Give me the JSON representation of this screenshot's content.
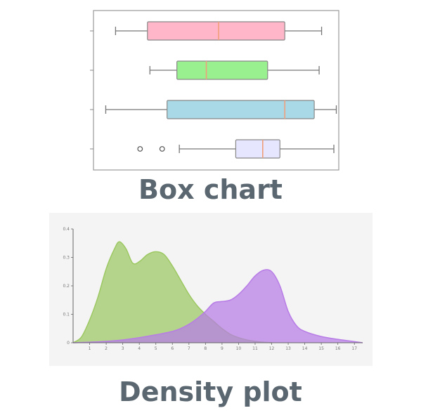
{
  "captions": {
    "box": "Box chart",
    "density": "Density plot"
  },
  "chart_data": [
    {
      "type": "box",
      "title": "",
      "xlim": [
        0,
        100
      ],
      "boxes": [
        {
          "min": 9,
          "q1": 22,
          "median": 51,
          "q3": 78,
          "max": 93,
          "outliers": [],
          "fill": "#ffb6c8",
          "stroke": "#888888",
          "median_color": "#f0a07a"
        },
        {
          "min": 23,
          "q1": 34,
          "median": 46,
          "q3": 71,
          "max": 92,
          "outliers": [],
          "fill": "#98f08e",
          "stroke": "#888888",
          "median_color": "#f0a07a"
        },
        {
          "min": 5,
          "q1": 30,
          "median": 78,
          "q3": 90,
          "max": 99,
          "outliers": [],
          "fill": "#a9d9e6",
          "stroke": "#888888",
          "median_color": "#f0a07a"
        },
        {
          "min": 35,
          "q1": 58,
          "median": 69,
          "q3": 76,
          "max": 98,
          "outliers": [
            19,
            28
          ],
          "fill": "#e6e6ff",
          "stroke": "#888888",
          "median_color": "#f0a07a"
        }
      ]
    },
    {
      "type": "area",
      "title": "",
      "xlim": [
        0,
        17.5
      ],
      "ylim": [
        0,
        0.4
      ],
      "x_ticks": [
        "1",
        "2",
        "3",
        "4",
        "5",
        "6",
        "7",
        "8",
        "9",
        "10",
        "11",
        "12",
        "13",
        "14",
        "15",
        "16",
        "17"
      ],
      "y_ticks": [
        "0",
        "0.1",
        "0.2",
        "0.3",
        "0.4"
      ],
      "series": [
        {
          "color": "#9cc862",
          "x": [
            0,
            0.5,
            1,
            1.5,
            2,
            2.5,
            2.8,
            3.2,
            3.6,
            4,
            4.5,
            5,
            5.5,
            6,
            6.5,
            7,
            7.5,
            8,
            8.5,
            9,
            9.5,
            10,
            10.5,
            11,
            11.5,
            12
          ],
          "y": [
            0,
            0.02,
            0.08,
            0.16,
            0.26,
            0.33,
            0.355,
            0.33,
            0.28,
            0.285,
            0.31,
            0.32,
            0.31,
            0.27,
            0.22,
            0.17,
            0.13,
            0.1,
            0.075,
            0.05,
            0.03,
            0.018,
            0.01,
            0.005,
            0.002,
            0
          ]
        },
        {
          "color": "#b77ce6",
          "x": [
            0,
            1,
            2,
            3,
            4,
            5,
            6,
            6.5,
            7,
            7.5,
            8,
            8.5,
            9,
            9.5,
            10,
            10.5,
            11,
            11.5,
            12,
            12.5,
            13,
            13.5,
            14,
            15,
            16,
            17,
            17.5
          ],
          "y": [
            0,
            0.002,
            0.005,
            0.01,
            0.018,
            0.028,
            0.04,
            0.05,
            0.065,
            0.085,
            0.11,
            0.14,
            0.145,
            0.15,
            0.17,
            0.2,
            0.235,
            0.255,
            0.25,
            0.2,
            0.11,
            0.06,
            0.04,
            0.022,
            0.012,
            0.004,
            0
          ]
        }
      ]
    }
  ]
}
